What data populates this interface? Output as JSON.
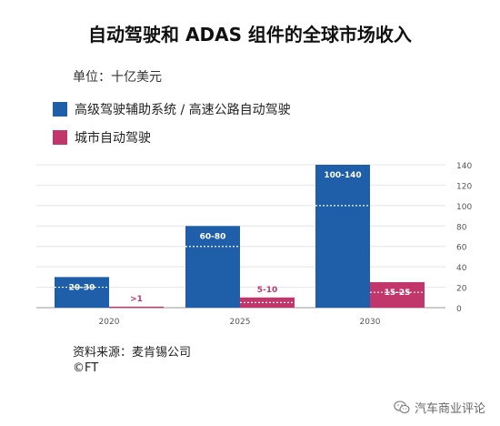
{
  "chart_data": {
    "type": "bar",
    "title": "自动驾驶和 ADAS 组件的全球市场收入",
    "subtitle": "单位：十亿美元",
    "categories": [
      "2020",
      "2025",
      "2030"
    ],
    "series": [
      {
        "name": "高级驾驶辅助系统 / 高速公路自动驾驶",
        "color": "#1f5ea8",
        "values": [
          30,
          80,
          140
        ],
        "midpoints": [
          20,
          60,
          100
        ],
        "labels": [
          "20-30",
          "60-80",
          "100-140"
        ]
      },
      {
        "name": "城市自动驾驶",
        "color": "#c1366b",
        "values": [
          1,
          10,
          25
        ],
        "midpoints": [
          0,
          5,
          15
        ],
        "labels": [
          ">1",
          "5-10",
          "15-25"
        ]
      }
    ],
    "ylim": [
      0,
      140
    ],
    "yticks": [
      0,
      20,
      40,
      60,
      80,
      100,
      120,
      140
    ],
    "grid": true,
    "legend": "top-left"
  },
  "source": "资料来源：麦肯锡公司",
  "copyright": "©FT",
  "watermark": "汽车商业评论",
  "watermark_icon": "wechat-icon"
}
